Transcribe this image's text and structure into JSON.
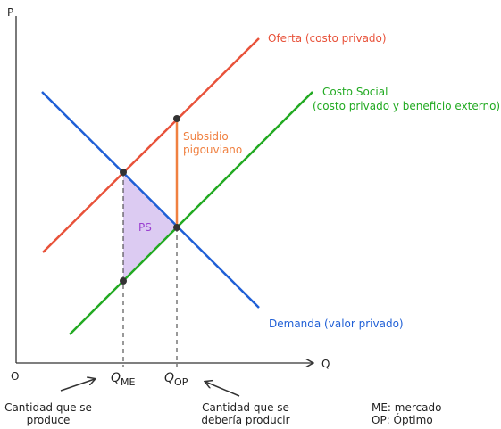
{
  "axes": {
    "y": "P",
    "x": "Q",
    "origin": "O"
  },
  "curves": {
    "supply": "Oferta (costo privado)",
    "social_cost": [
      "Costo Social",
      "(costo privado y beneficio externo)"
    ],
    "demand": "Demanda (valor privado)"
  },
  "subsidy": [
    "Subsidio",
    "pigouviano"
  ],
  "surplus": "PS",
  "quantities": [
    {
      "symbol": "Q",
      "subscript": "ME",
      "caption": [
        "Cantidad que se",
        "produce"
      ]
    },
    {
      "symbol": "Q",
      "subscript": "OP",
      "caption": [
        "Cantidad que se",
        "debería producir"
      ]
    }
  ],
  "legend": [
    "ME: mercado",
    "OP: Óptimo"
  ]
}
